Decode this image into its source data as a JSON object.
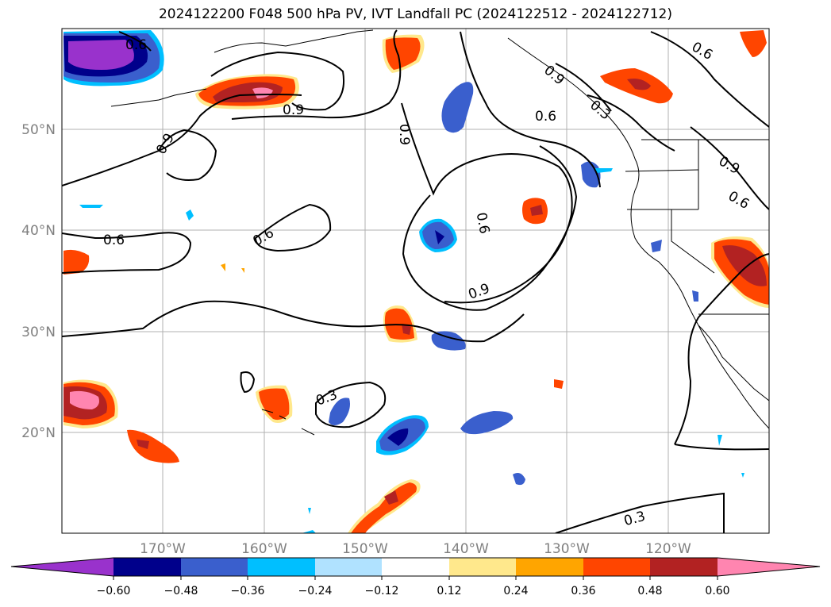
{
  "title": "2024122200 F048 500 hPa PV, IVT Landfall PC (2024122512 - 2024122712)",
  "map": {
    "lat_ticks": [
      "50°N",
      "40°N",
      "30°N",
      "20°N"
    ],
    "lon_ticks": [
      "170°W",
      "160°W",
      "150°W",
      "140°W",
      "130°W",
      "120°W"
    ],
    "lat_range": [
      10,
      60
    ],
    "lon_range": [
      -180,
      -110
    ],
    "contour_labels": [
      "0.6",
      "0.9",
      "0.9",
      "0.6",
      "0.9",
      "0.6",
      "0.6",
      "0.6",
      "0.9",
      "0.3",
      "0.6",
      "0.9",
      "0.6",
      "0.3",
      "0.9",
      "0.3"
    ]
  },
  "colorbar": {
    "tick_labels": [
      "−0.60",
      "−0.48",
      "−0.36",
      "−0.24",
      "−0.12",
      "0.12",
      "0.24",
      "0.36",
      "0.48",
      "0.60"
    ],
    "colors": [
      "#9932cc",
      "#00008b",
      "#3a5fcd",
      "#00bfff",
      "#b0e2ff",
      "#ffffff",
      "#ffe88c",
      "#ffa500",
      "#ff4500",
      "#b22222",
      "#ff85b0"
    ]
  }
}
